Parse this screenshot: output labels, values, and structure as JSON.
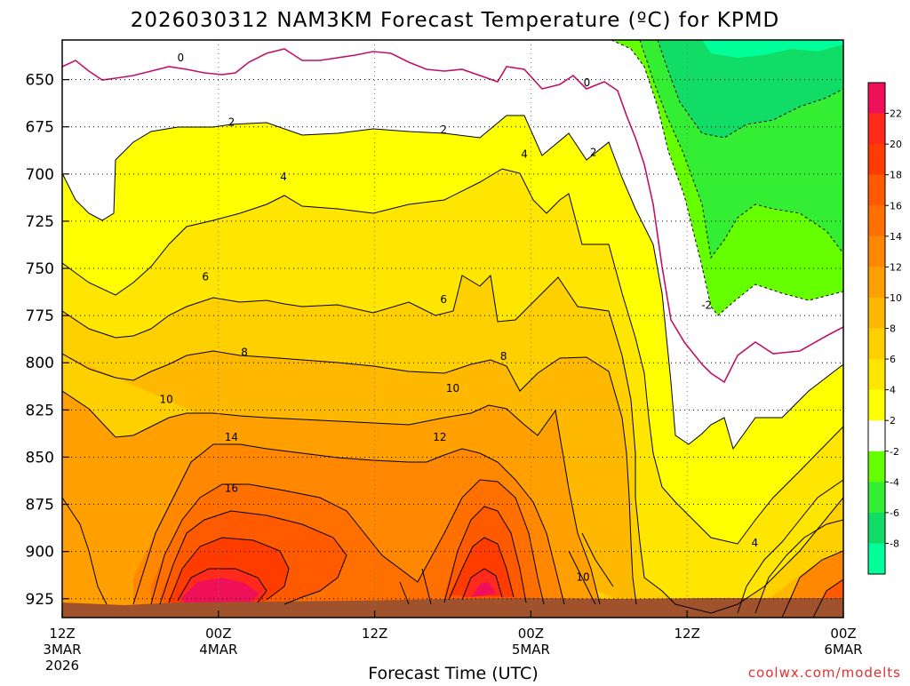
{
  "chart_data": {
    "type": "contour",
    "title": "2026030312 NAM3KM Forecast Temperature (ºC) for KPMD",
    "xlabel": "Forecast Time (UTC)",
    "ylabel": "",
    "credit": "coolwx.com/modelts",
    "x_ticks": [
      {
        "lines": [
          "12Z",
          "3MAR",
          "2026"
        ]
      },
      {
        "lines": [
          "00Z",
          "4MAR"
        ]
      },
      {
        "lines": [
          "12Z"
        ]
      },
      {
        "lines": [
          "00Z",
          "5MAR"
        ]
      },
      {
        "lines": [
          "12Z"
        ]
      },
      {
        "lines": [
          "00Z",
          "6MAR"
        ]
      }
    ],
    "xlim_hours": [
      0,
      60
    ],
    "x_tick_hours": [
      0,
      12,
      24,
      36,
      48,
      60
    ],
    "y_ticks": [
      "650",
      "675",
      "700",
      "725",
      "750",
      "775",
      "800",
      "825",
      "850",
      "875",
      "900",
      "925"
    ],
    "y_tick_values": [
      650,
      675,
      700,
      725,
      750,
      775,
      800,
      825,
      850,
      875,
      900,
      925
    ],
    "ylim_hpa": [
      629,
      935
    ],
    "y_scale": "reversed pressure (hPa)",
    "grid": true,
    "colorbar": {
      "levels": [
        "22",
        "20",
        "18",
        "16",
        "14",
        "12",
        "10",
        "8",
        "6",
        "4",
        "2",
        "-2",
        "-4",
        "-6",
        "-8"
      ],
      "colors": [
        "#f0105a",
        "#ff2a1a",
        "#ff3c00",
        "#ff5a00",
        "#ff7000",
        "#ff8800",
        "#ffa000",
        "#ffb800",
        "#ffd000",
        "#ffe600",
        "#ffff00",
        "#ffffff",
        "#66ff00",
        "#33ee33",
        "#11dd66",
        "#00ff99"
      ],
      "placement": "right"
    },
    "contour_labels": [
      {
        "text": "0",
        "t": 9.1,
        "p": 639
      },
      {
        "text": "0",
        "t": 40.3,
        "p": 652
      },
      {
        "text": "2",
        "t": 13.0,
        "p": 673
      },
      {
        "text": "2",
        "t": 29.3,
        "p": 677
      },
      {
        "text": "2",
        "t": 40.8,
        "p": 689
      },
      {
        "text": "4",
        "t": 17.0,
        "p": 702
      },
      {
        "text": "4",
        "t": 35.5,
        "p": 690
      },
      {
        "text": "6",
        "t": 11.0,
        "p": 755
      },
      {
        "text": "6",
        "t": 29.3,
        "p": 767
      },
      {
        "text": "-2",
        "t": 49.5,
        "p": 770
      },
      {
        "text": "8",
        "t": 14.0,
        "p": 795
      },
      {
        "text": "8",
        "t": 33.9,
        "p": 797
      },
      {
        "text": "10",
        "t": 8.0,
        "p": 820
      },
      {
        "text": "10",
        "t": 30.0,
        "p": 814
      },
      {
        "text": "12",
        "t": 29.0,
        "p": 840
      },
      {
        "text": "14",
        "t": 13.0,
        "p": 840
      },
      {
        "text": "16",
        "t": 13.0,
        "p": 867
      },
      {
        "text": "10",
        "t": 40.0,
        "p": 914
      },
      {
        "text": "4",
        "t": 53.2,
        "p": 896
      }
    ]
  }
}
